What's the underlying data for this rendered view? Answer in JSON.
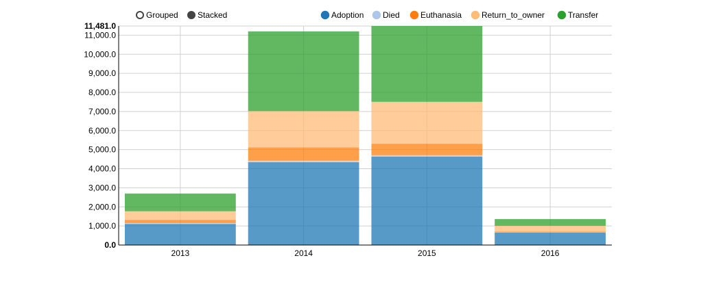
{
  "controls": {
    "grouped_label": "Grouped",
    "stacked_label": "Stacked",
    "selected": "stacked"
  },
  "chart_data": {
    "type": "bar",
    "stacked": true,
    "categories": [
      "2013",
      "2014",
      "2015",
      "2016"
    ],
    "series": [
      {
        "name": "Adoption",
        "color": "#1f77b4",
        "values": [
          1106,
          4340,
          4637,
          649
        ]
      },
      {
        "name": "Died",
        "color": "#aec7e8",
        "values": [
          44,
          80,
          70,
          10
        ]
      },
      {
        "name": "Euthanasia",
        "color": "#ff7f0e",
        "values": [
          170,
          700,
          600,
          50
        ]
      },
      {
        "name": "Return_to_owner",
        "color": "#ffbb78",
        "values": [
          450,
          1900,
          2200,
          300
        ]
      },
      {
        "name": "Transfer",
        "color": "#2ca02c",
        "values": [
          930,
          4180,
          3974,
          351
        ]
      }
    ],
    "y_ticks": [
      "0.0",
      "1,000.0",
      "2,000.0",
      "3,000.0",
      "4,000.0",
      "5,000.0",
      "6,000.0",
      "7,000.0",
      "8,000.0",
      "9,000.0",
      "10,000.0",
      "11,000.0"
    ],
    "y_max_label": "11,481.0",
    "ylim": [
      0,
      11481
    ],
    "grid": true,
    "legend_position": "top-right"
  }
}
